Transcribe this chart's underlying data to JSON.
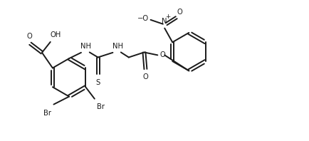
{
  "bg_color": "#ffffff",
  "line_color": "#1a1a1a",
  "line_width": 1.4,
  "font_size": 7.2,
  "fig_width": 4.34,
  "fig_height": 1.98,
  "dpi": 100,
  "xlim": [
    0,
    10.5
  ],
  "ylim": [
    -2.4,
    2.6
  ]
}
